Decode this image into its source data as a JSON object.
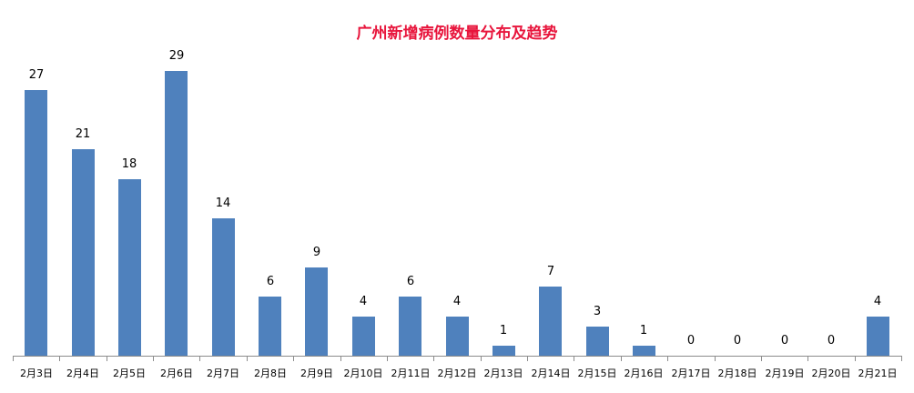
{
  "chart_data": {
    "type": "bar",
    "title": "广州新增病例数量分布及趋势",
    "xlabel": "",
    "ylabel": "",
    "categories": [
      "2月3日",
      "2月4日",
      "2月5日",
      "2月6日",
      "2月7日",
      "2月8日",
      "2月9日",
      "2月10日",
      "2月11日",
      "2月12日",
      "2月13日",
      "2月14日",
      "2月15日",
      "2月16日",
      "2月17日",
      "2月18日",
      "2月19日",
      "2月20日",
      "2月21日"
    ],
    "values": [
      27,
      21,
      18,
      29,
      14,
      6,
      9,
      4,
      6,
      4,
      1,
      7,
      3,
      1,
      0,
      0,
      0,
      0,
      4
    ],
    "ylim": [
      0,
      29
    ],
    "grid": false,
    "legend": "none",
    "data_labels": true,
    "colors": {
      "bar": "#4f81bd",
      "title": "#e8153c",
      "axis": "#8c8c8c"
    }
  }
}
